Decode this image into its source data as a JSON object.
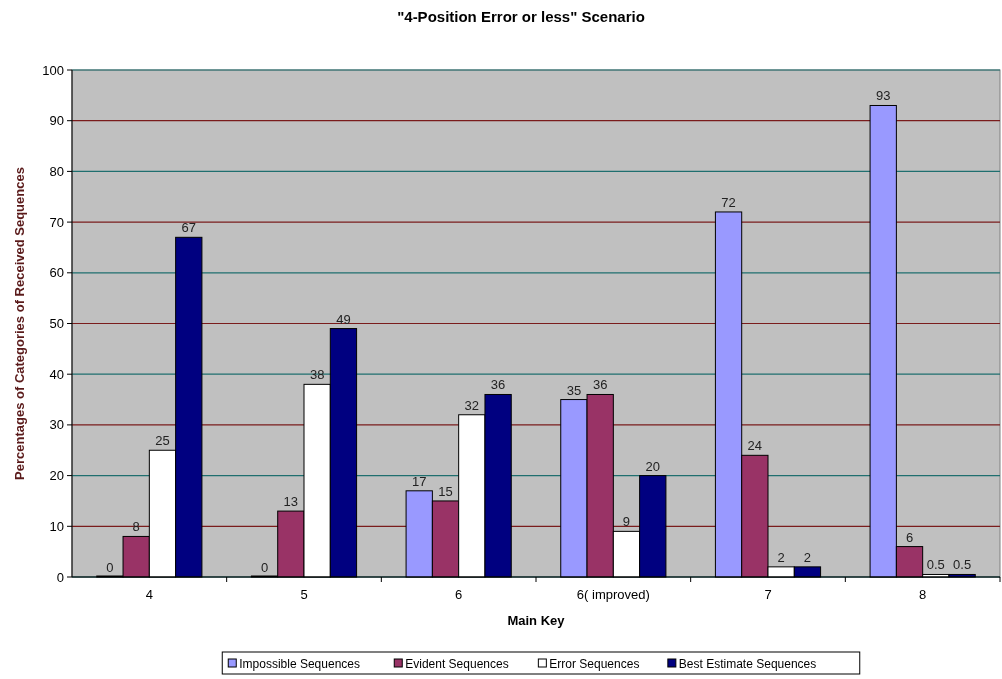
{
  "chart_data": {
    "type": "bar",
    "title": "\"4-Position Error or less\" Scenario",
    "xlabel": "Main Key",
    "ylabel": "Percentages of Categories of Received Sequences",
    "categories": [
      "4",
      "5",
      "6",
      "6( improved)",
      "7",
      "8"
    ],
    "series": [
      {
        "name": "Impossible Sequences",
        "color": "#9999ff",
        "values": [
          0,
          0,
          17,
          35,
          72,
          93
        ]
      },
      {
        "name": "Evident Sequences",
        "color": "#993366",
        "values": [
          8,
          13,
          15,
          36,
          24,
          6
        ]
      },
      {
        "name": "Error Sequences",
        "color": "#ffffff",
        "values": [
          25,
          38,
          32,
          9,
          2,
          0.5
        ]
      },
      {
        "name": "Best Estimate Sequences",
        "color": "#000080",
        "values": [
          67,
          49,
          36,
          20,
          2,
          0.5
        ]
      }
    ],
    "ylim": [
      0,
      100
    ],
    "yticks": [
      0,
      10,
      20,
      30,
      40,
      50,
      60,
      70,
      80,
      90,
      100
    ],
    "grid": "y",
    "legend": "bottom",
    "data_labels": true
  }
}
